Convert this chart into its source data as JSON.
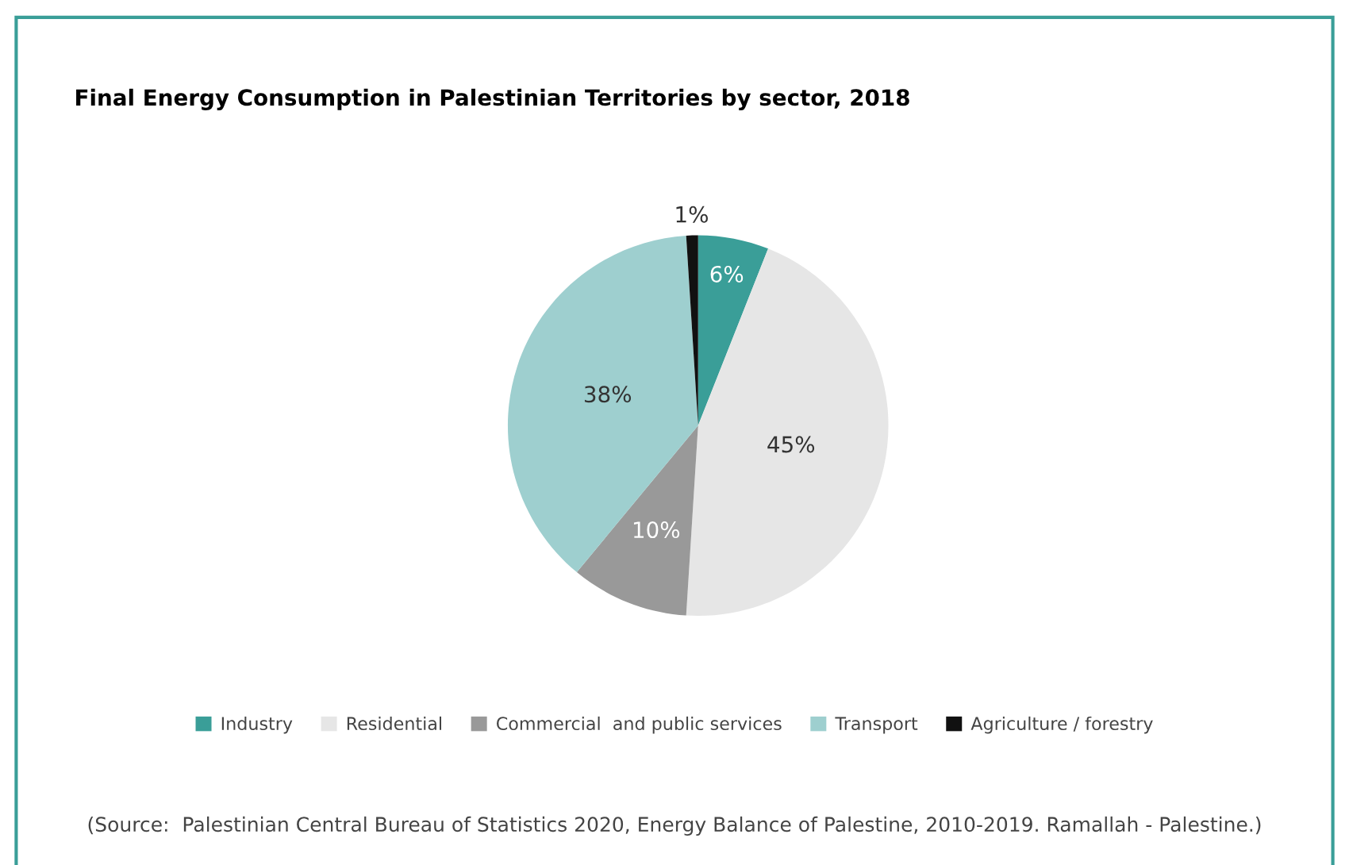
{
  "chart_data": {
    "type": "pie",
    "title": "Final Energy Consumption in Palestinian Territories by sector, 2018",
    "categories": [
      "Industry",
      "Residential",
      "Commercial  and public services",
      "Transport",
      "Agriculture / forestry"
    ],
    "values": [
      6,
      45,
      10,
      38,
      1
    ],
    "colors": [
      "#3a9e98",
      "#e6e6e6",
      "#999999",
      "#9ecfcf",
      "#111111"
    ],
    "value_labels": [
      "6%",
      "45%",
      "10%",
      "38%",
      "1%"
    ],
    "legend": "bottom",
    "annotations": [
      "(Source:  Palestinian Central Bureau of Statistics 2020, Energy Balance of Palestine, 2010-2019. Ramallah - Palestine.)"
    ]
  }
}
